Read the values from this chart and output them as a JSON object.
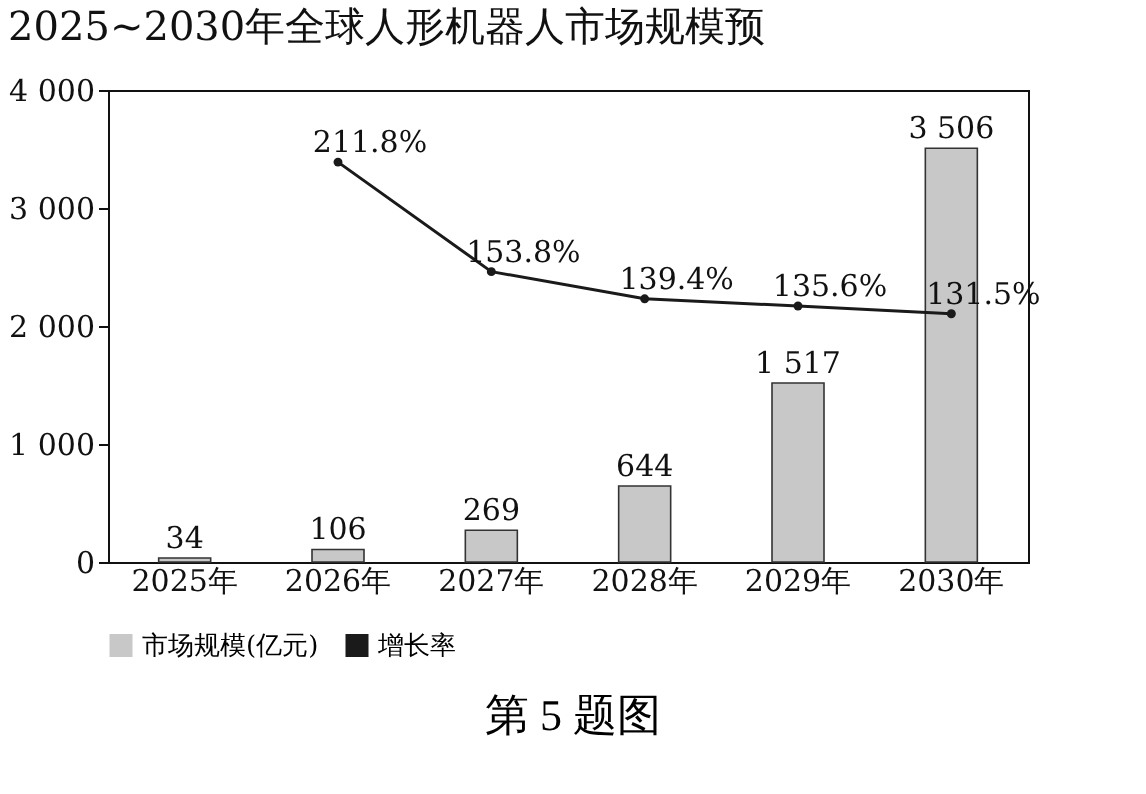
{
  "chart_data": {
    "type": "bar",
    "title": "2025~2030年全球人形机器人市场规模预",
    "categories": [
      "2025年",
      "2026年",
      "2027年",
      "2028年",
      "2029年",
      "2030年"
    ],
    "series": [
      {
        "name": "市场规模(亿元)",
        "color": "#c8c8c8",
        "values": [
          34,
          106,
          269,
          644,
          1517,
          3506
        ],
        "value_labels": [
          "34",
          "106",
          "269",
          "644",
          "1 517",
          "3 506"
        ]
      },
      {
        "name": "增长率",
        "type": "line",
        "axis": "y2",
        "color": "#1a1a1a",
        "values": [
          null,
          211.8,
          153.8,
          139.4,
          135.6,
          131.5
        ],
        "value_labels": [
          null,
          "211.8%",
          "153.8%",
          "139.4%",
          "135.6%",
          "131.5%"
        ]
      }
    ],
    "ylim": [
      0,
      4000
    ],
    "yticks": [
      0,
      {
        "value": 1000,
        "label": "1 000"
      },
      {
        "value": 2000,
        "label": "2 000"
      },
      {
        "value": 3000,
        "label": "3 000"
      },
      {
        "value": 4000,
        "label": "4 000"
      }
    ],
    "y2lim": [
      0,
      250
    ],
    "marker": "circle",
    "grid": false,
    "legend": "bottom",
    "annotations": [
      "第 5 题图"
    ]
  }
}
